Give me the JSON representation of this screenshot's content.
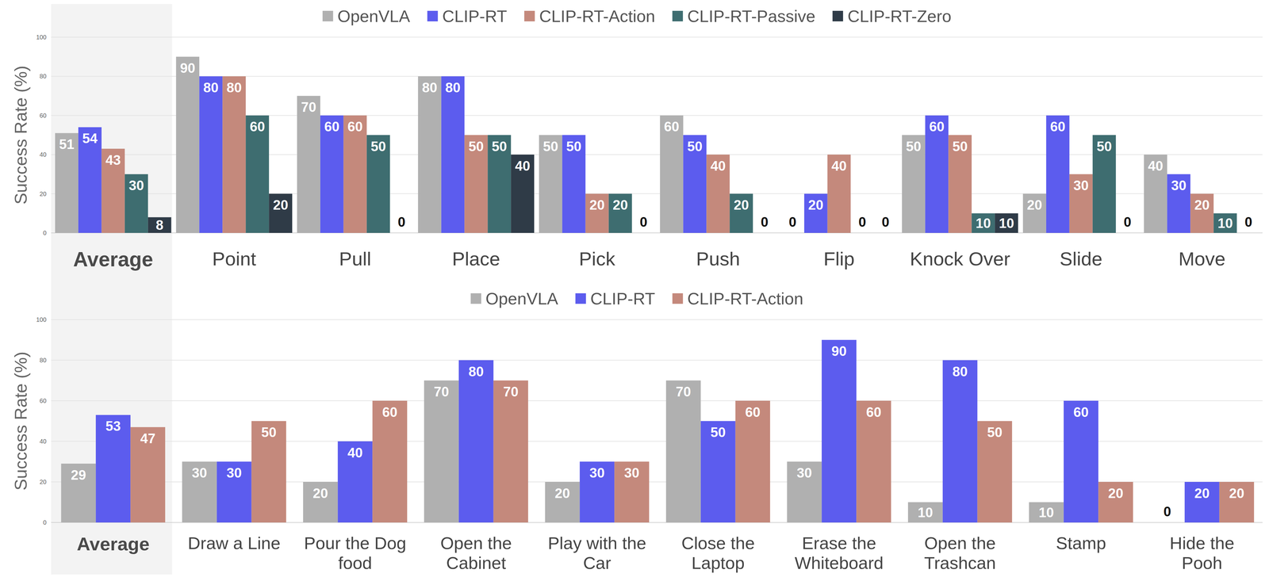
{
  "chart_data": [
    {
      "type": "bar",
      "categories": [
        "Average",
        "Point",
        "Pull",
        "Place",
        "Pick",
        "Push",
        "Flip",
        "Knock Over",
        "Slide",
        "Move"
      ],
      "series": [
        {
          "name": "OpenVLA",
          "color": "#b0b0b0",
          "values": [
            51,
            90,
            70,
            80,
            50,
            60,
            0,
            50,
            20,
            40
          ]
        },
        {
          "name": "CLIP-RT",
          "color": "#5c5cee",
          "values": [
            54,
            80,
            60,
            80,
            50,
            50,
            20,
            60,
            60,
            30
          ]
        },
        {
          "name": "CLIP-RT-Action",
          "color": "#c4897c",
          "values": [
            43,
            80,
            60,
            50,
            20,
            40,
            40,
            50,
            30,
            20
          ]
        },
        {
          "name": "CLIP-RT-Passive",
          "color": "#3e6d70",
          "values": [
            30,
            60,
            50,
            50,
            20,
            20,
            0,
            10,
            50,
            10
          ]
        },
        {
          "name": "CLIP-RT-Zero",
          "color": "#2f3b47",
          "values": [
            8,
            20,
            0,
            40,
            0,
            0,
            0,
            10,
            0,
            0
          ]
        }
      ],
      "y_label": "Success Rate (%)",
      "ylim": [
        0,
        100
      ],
      "yticks": [
        0,
        20,
        40,
        60,
        80,
        100
      ],
      "grid": true,
      "legend": "top",
      "data_labels": true
    },
    {
      "type": "bar",
      "categories": [
        "Average",
        "Draw a Line",
        "Pour the Dog food",
        "Open the Cabinet",
        "Play with the Car",
        "Close the Laptop",
        "Erase the Whiteboard",
        "Open the Trashcan",
        "Stamp",
        "Hide the Pooh"
      ],
      "series": [
        {
          "name": "OpenVLA",
          "color": "#b0b0b0",
          "values": [
            29,
            30,
            20,
            70,
            20,
            70,
            30,
            10,
            10,
            0
          ]
        },
        {
          "name": "CLIP-RT",
          "color": "#5c5cee",
          "values": [
            53,
            30,
            40,
            80,
            30,
            50,
            90,
            80,
            60,
            20
          ]
        },
        {
          "name": "CLIP-RT-Action",
          "color": "#c4897c",
          "values": [
            47,
            50,
            60,
            70,
            30,
            60,
            60,
            50,
            20,
            20
          ]
        }
      ],
      "y_label": "Success Rate (%)",
      "ylim": [
        0,
        100
      ],
      "yticks": [
        0,
        20,
        40,
        60,
        80,
        100
      ],
      "grid": true,
      "legend": "top",
      "data_labels": true
    }
  ]
}
